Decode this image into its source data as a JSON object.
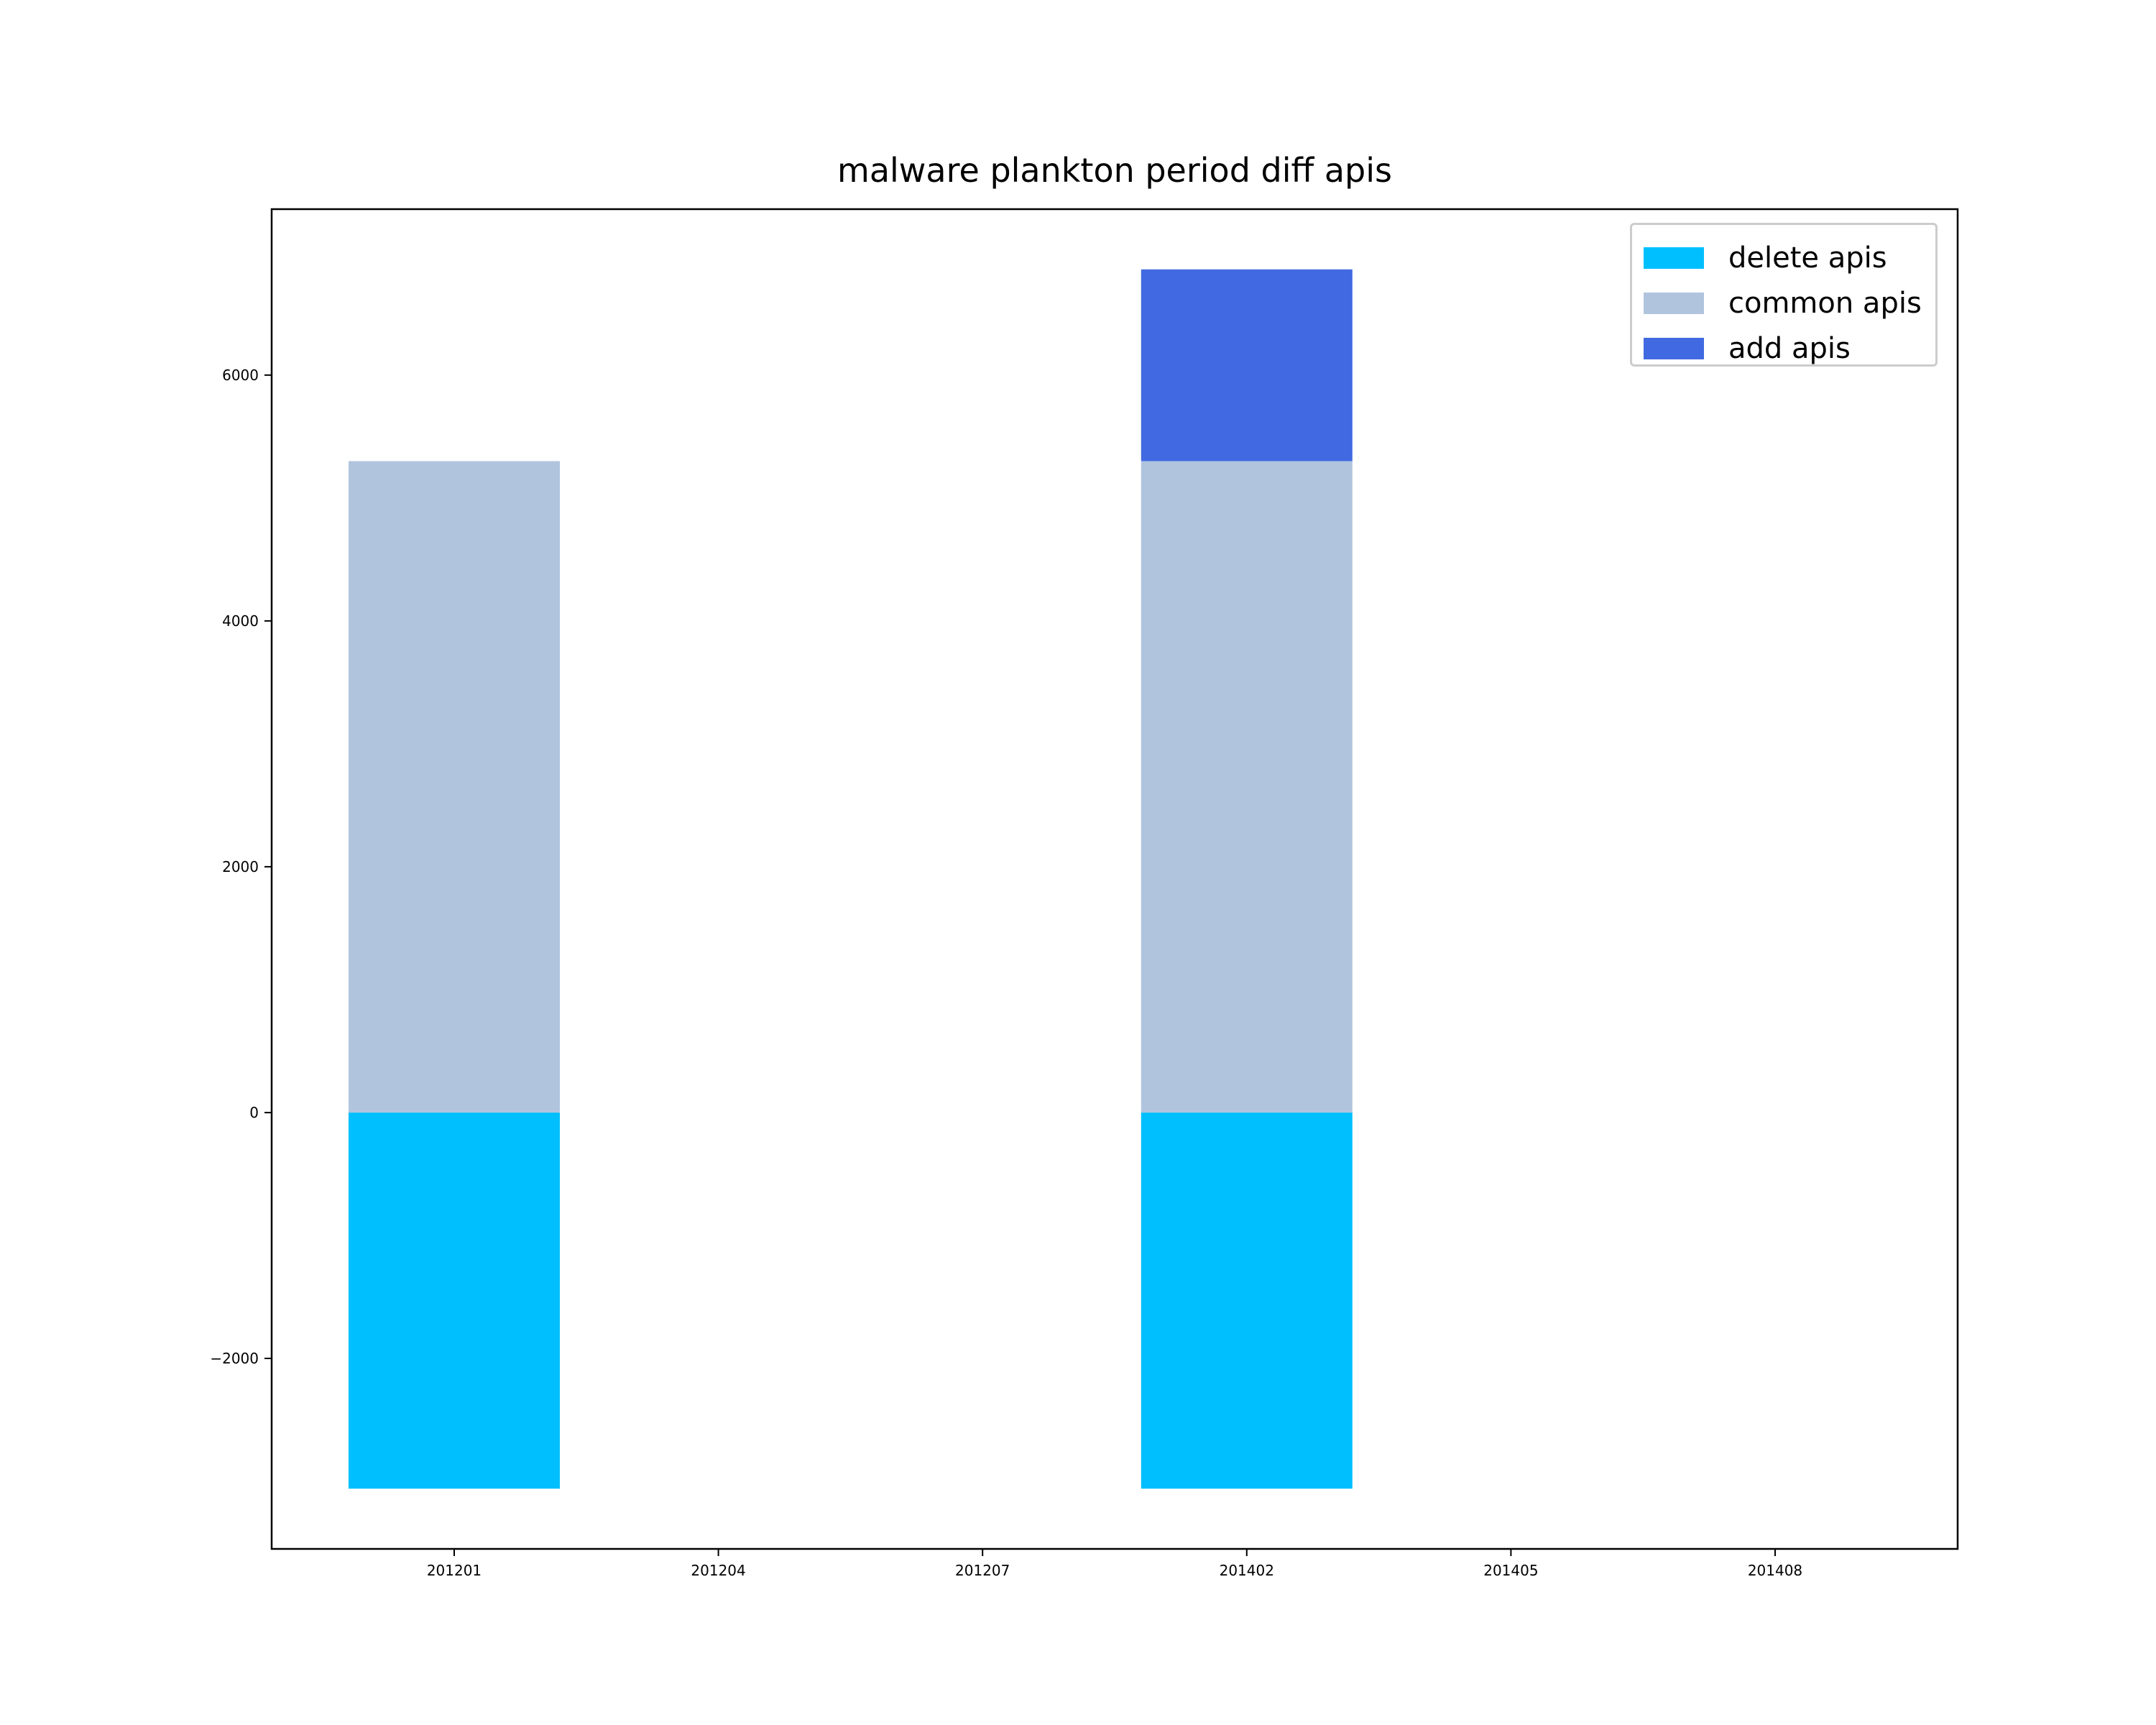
{
  "chart_data": {
    "type": "bar",
    "stacked": true,
    "title": "malware plankton period diff apis",
    "xlabel": "",
    "ylabel": "",
    "categories": [
      "201201",
      "201204",
      "201207",
      "201402",
      "201405",
      "201408"
    ],
    "series": [
      {
        "name": "delete apis",
        "color": "#00bfff",
        "values": [
          -3060,
          0,
          0,
          -3060,
          0,
          0
        ]
      },
      {
        "name": "common apis",
        "color": "#b0c4de",
        "values": [
          5300,
          0,
          0,
          5300,
          0,
          0
        ]
      },
      {
        "name": "add apis",
        "color": "#4169e1",
        "values": [
          0,
          0,
          0,
          1560,
          0,
          0
        ]
      }
    ],
    "ylim": [
      -3550,
      7350
    ],
    "yticks": [
      -2000,
      0,
      2000,
      4000,
      6000
    ],
    "ytick_labels": [
      "−2000",
      "0",
      "2000",
      "4000",
      "6000"
    ],
    "grid": false,
    "legend_position": "top-right"
  }
}
